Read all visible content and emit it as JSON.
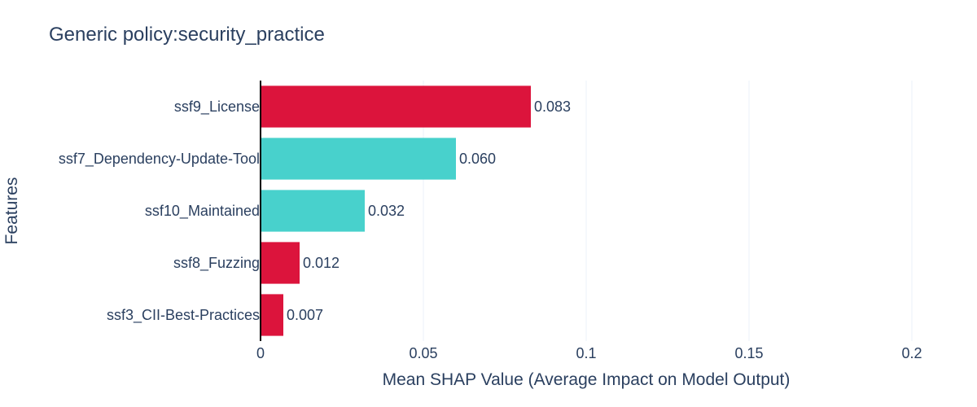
{
  "chart_data": {
    "type": "bar",
    "orientation": "horizontal",
    "title": "Generic policy:security_practice",
    "xlabel": "Mean SHAP Value (Average Impact on Model Output)",
    "ylabel": "Features",
    "xlim": [
      0,
      0.2
    ],
    "xticks": [
      0,
      0.05,
      0.1,
      0.15,
      0.2
    ],
    "xtick_labels": [
      "0",
      "0.05",
      "0.1",
      "0.15",
      "0.2"
    ],
    "grid": true,
    "categories": [
      "ssf9_License",
      "ssf7_Dependency-Update-Tool",
      "ssf10_Maintained",
      "ssf8_Fuzzing",
      "ssf3_CII-Best-Practices"
    ],
    "values": [
      0.083,
      0.06,
      0.032,
      0.012,
      0.007
    ],
    "value_labels": [
      "0.083",
      "0.060",
      "0.032",
      "0.012",
      "0.007"
    ],
    "colors": [
      "#dc143c",
      "#48d1cc",
      "#48d1cc",
      "#dc143c",
      "#dc143c"
    ]
  }
}
